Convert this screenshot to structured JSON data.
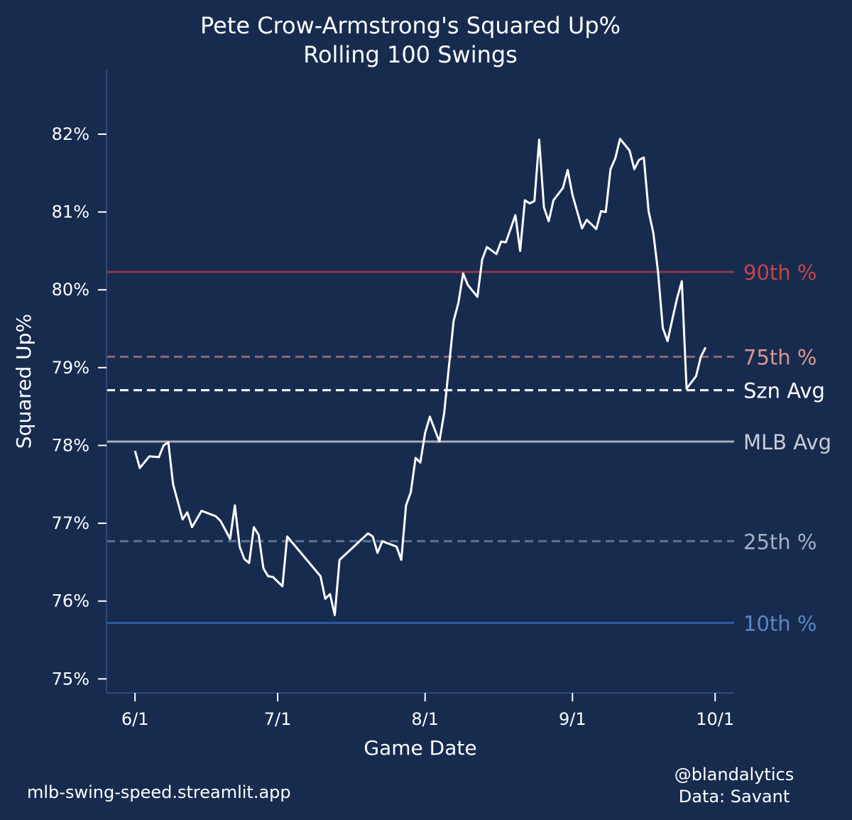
{
  "chart_data": {
    "type": "line",
    "title": "Pete Crow-Armstrong's Squared Up%",
    "subtitle": "Rolling 100 Swings",
    "xlabel": "Game Date",
    "ylabel": "Squared Up%",
    "xlim": [
      "5/26",
      "10/5"
    ],
    "ylim": [
      74.82,
      82.83
    ],
    "x_ticks": [
      "6/1",
      "7/1",
      "8/1",
      "9/1",
      "10/1"
    ],
    "y_ticks": [
      75,
      76,
      77,
      78,
      79,
      80,
      81,
      82
    ],
    "y_tick_labels": [
      "75%",
      "76%",
      "77%",
      "78%",
      "79%",
      "80%",
      "81%",
      "82%"
    ],
    "grid": false,
    "background": "#172b4f",
    "series": [
      {
        "color": "#ffffff",
        "x": [
          "6/1",
          "6/2",
          "6/4",
          "6/6",
          "6/7",
          "6/8",
          "6/9",
          "6/11",
          "6/12",
          "6/13",
          "6/15",
          "6/18",
          "6/19",
          "6/21",
          "6/22",
          "6/23",
          "6/24",
          "6/25",
          "6/26",
          "6/27",
          "6/28",
          "6/29",
          "6/30",
          "7/2",
          "7/3",
          "7/10",
          "7/11",
          "7/12",
          "7/13",
          "7/14",
          "7/20",
          "7/21",
          "7/22",
          "7/23",
          "7/26",
          "7/27",
          "7/28",
          "7/29",
          "7/30",
          "7/31",
          "8/1",
          "8/2",
          "8/4",
          "8/5",
          "8/7",
          "8/8",
          "8/9",
          "8/10",
          "8/12",
          "8/13",
          "8/14",
          "8/16",
          "8/17",
          "8/18",
          "8/20",
          "8/21",
          "8/22",
          "8/23",
          "8/24",
          "8/25",
          "8/26",
          "8/27",
          "8/28",
          "8/30",
          "8/31",
          "9/1",
          "9/3",
          "9/4",
          "9/6",
          "9/7",
          "9/8",
          "9/9",
          "9/10",
          "9/11",
          "9/13",
          "9/14",
          "9/15",
          "9/16",
          "9/17",
          "9/18",
          "9/19",
          "9/20",
          "9/21",
          "9/22",
          "9/23",
          "9/24",
          "9/25",
          "9/27",
          "9/28",
          "9/29"
        ],
        "y": [
          77.93,
          77.71,
          77.86,
          77.85,
          78.0,
          78.04,
          77.5,
          77.05,
          77.14,
          76.95,
          77.16,
          77.09,
          77.03,
          76.8,
          77.23,
          76.7,
          76.54,
          76.49,
          76.95,
          76.85,
          76.42,
          76.32,
          76.31,
          76.19,
          76.83,
          76.32,
          76.03,
          76.09,
          75.82,
          76.53,
          76.87,
          76.83,
          76.62,
          76.77,
          76.7,
          76.53,
          77.23,
          77.4,
          77.84,
          77.78,
          78.16,
          78.37,
          78.05,
          78.41,
          79.6,
          79.83,
          80.21,
          80.06,
          79.91,
          80.39,
          80.55,
          80.46,
          80.62,
          80.61,
          80.96,
          80.5,
          81.15,
          81.11,
          81.14,
          81.93,
          81.06,
          80.88,
          81.15,
          81.31,
          81.54,
          81.22,
          80.79,
          80.9,
          80.78,
          81.01,
          81.0,
          81.55,
          81.69,
          81.94,
          81.79,
          81.55,
          81.67,
          81.7,
          81.01,
          80.73,
          80.23,
          79.51,
          79.34,
          79.62,
          79.89,
          80.11,
          78.73,
          78.89,
          79.14,
          79.26
        ]
      }
    ],
    "reference_lines": [
      {
        "label": "90th %",
        "value": 80.23,
        "line_color": "#8f3a44",
        "label_color": "#c2454b",
        "dashed": false
      },
      {
        "label": "75th %",
        "value": 79.14,
        "line_color": "#8a6875",
        "label_color": "#d9978f",
        "dashed": true
      },
      {
        "label": "Szn Avg",
        "value": 78.71,
        "line_color": "#ffffff",
        "label_color": "#ffffff",
        "dashed": true
      },
      {
        "label": "MLB Avg",
        "value": 78.05,
        "line_color": "#a8acb8",
        "label_color": "#c8ccd6",
        "dashed": false
      },
      {
        "label": "25th %",
        "value": 76.77,
        "line_color": "#5a7396",
        "label_color": "#a3b1c8",
        "dashed": true
      },
      {
        "label": "10th %",
        "value": 75.72,
        "line_color": "#2a5c9e",
        "label_color": "#5b86c4",
        "dashed": false
      }
    ]
  },
  "footer": {
    "left": "mlb-swing-speed.streamlit.app",
    "right_line1": "@blandalytics",
    "right_line2": "Data: Savant"
  }
}
